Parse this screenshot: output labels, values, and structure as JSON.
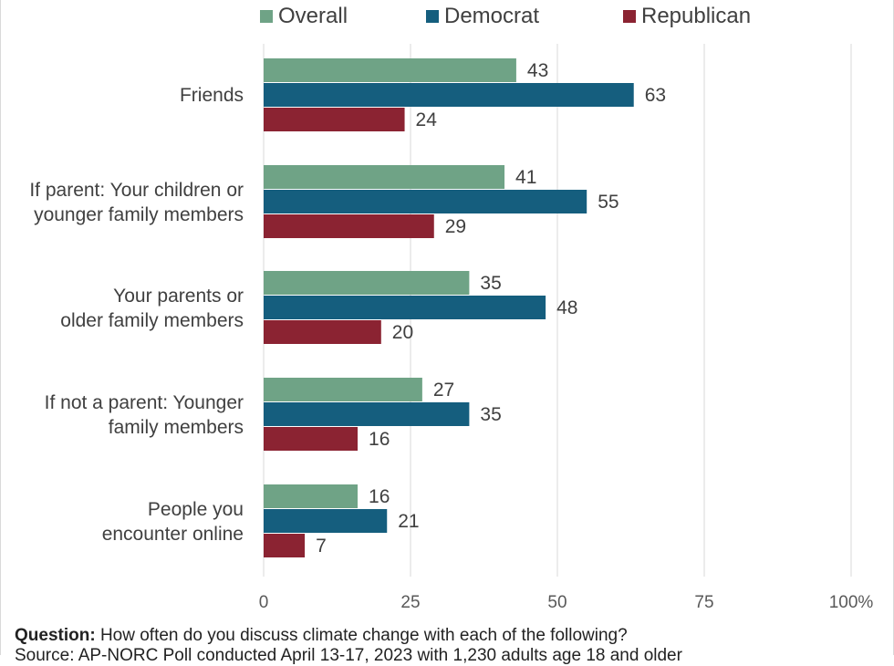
{
  "chart_data": {
    "type": "bar",
    "orientation": "horizontal",
    "categories": [
      [
        "Friends"
      ],
      [
        "If parent: Your children or",
        "younger family members"
      ],
      [
        "Your parents or",
        "older family members"
      ],
      [
        "If not a parent: Younger",
        "family members"
      ],
      [
        "People you",
        "encounter online"
      ]
    ],
    "series": [
      {
        "name": "Overall",
        "color": "#6fa386",
        "values": [
          43,
          41,
          35,
          27,
          16
        ]
      },
      {
        "name": "Democrat",
        "color": "#155e7e",
        "values": [
          63,
          55,
          48,
          35,
          21
        ]
      },
      {
        "name": "Republican",
        "color": "#8b2332",
        "values": [
          24,
          29,
          20,
          16,
          7
        ]
      }
    ],
    "xlim": [
      0,
      100
    ],
    "xticks": [
      0,
      25,
      50,
      75,
      100
    ],
    "xtick_labels": [
      "0",
      "25",
      "50",
      "75",
      "100%"
    ],
    "grid": true,
    "legend_position": "top"
  },
  "footer": {
    "question_label": "Question:",
    "question_text": " How often do you discuss climate change with each of the following?",
    "source_text": "Source: AP-NORC Poll conducted April 13-17, 2023 with 1,230 adults age 18 and older"
  }
}
